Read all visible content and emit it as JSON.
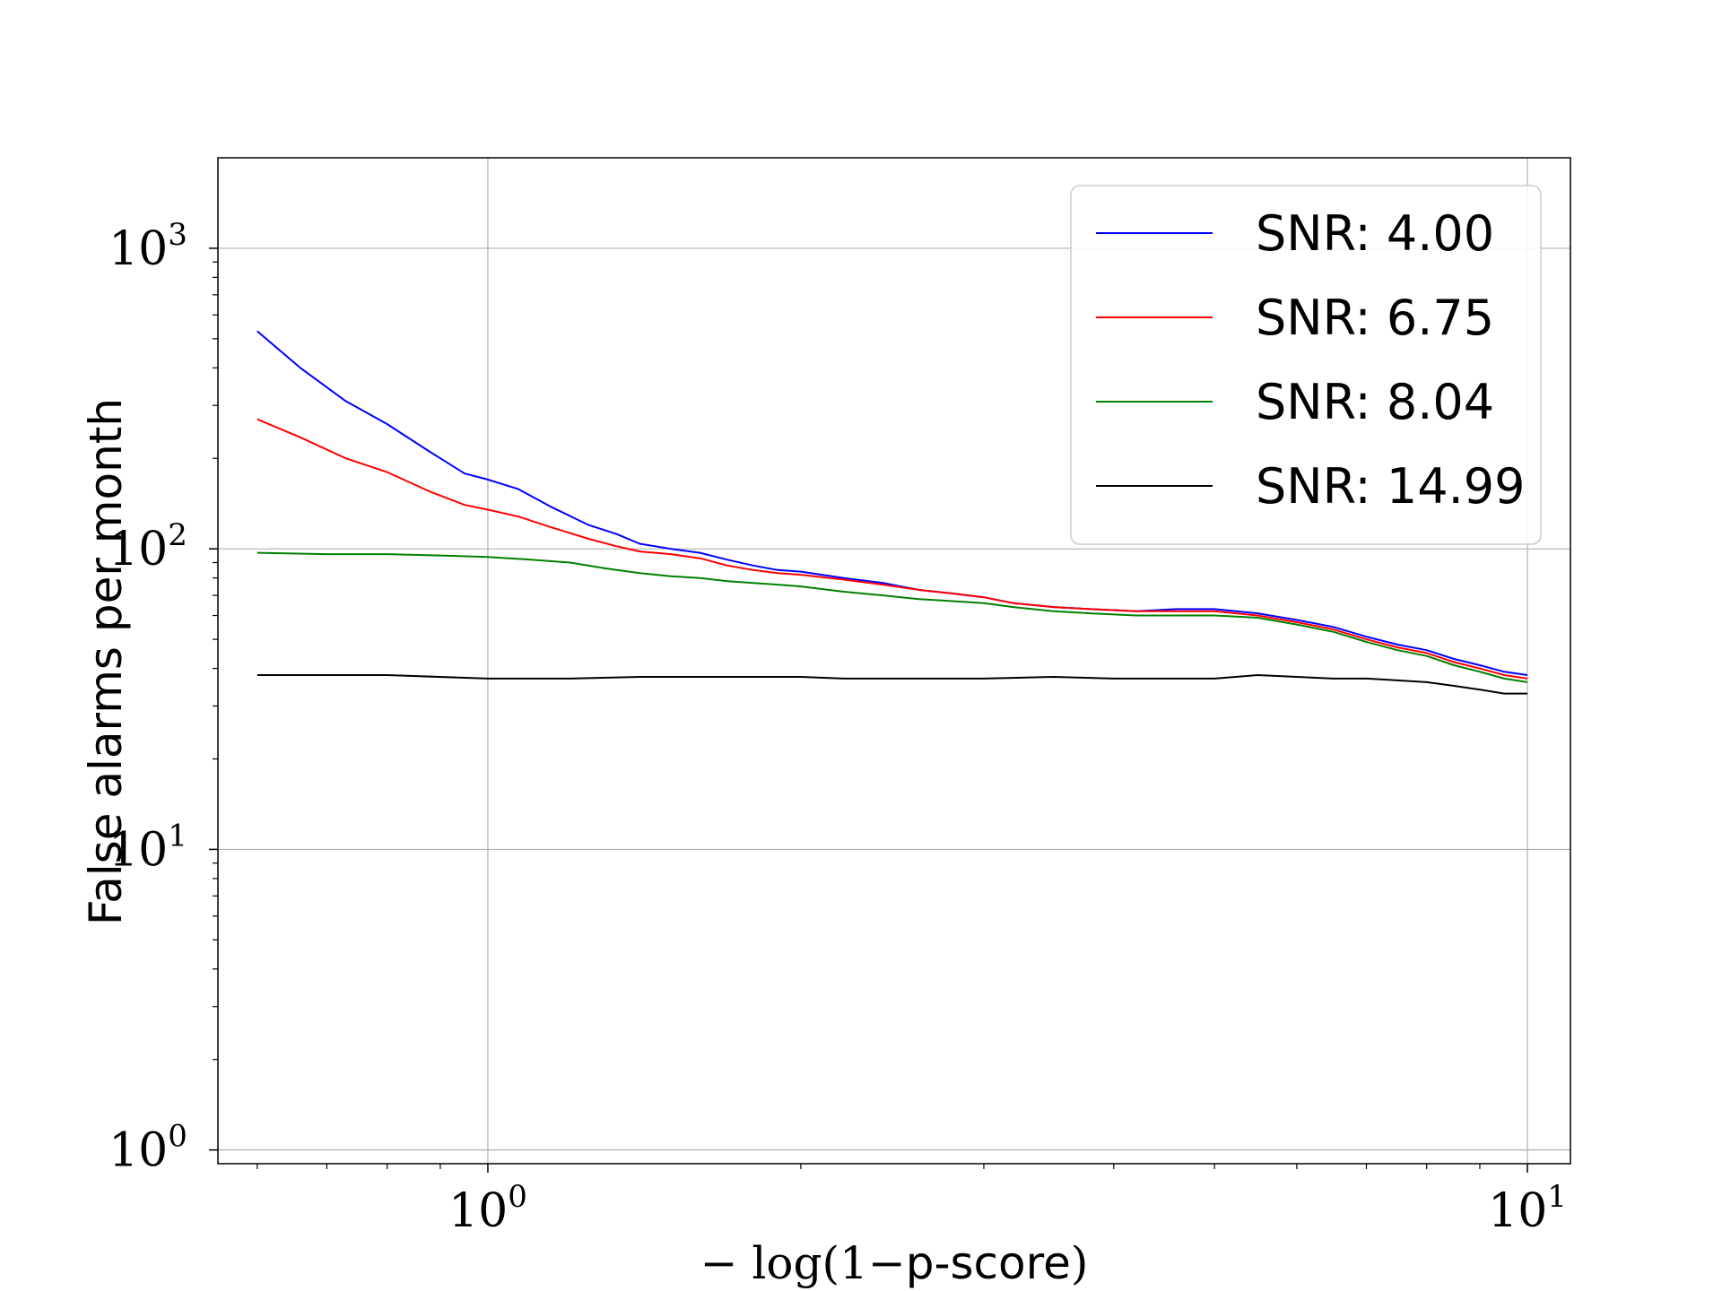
{
  "chart_data": {
    "type": "line",
    "title": "",
    "xlabel_math_prefix": "− log(1−",
    "xlabel_text": "p-score",
    "xlabel_math_suffix": ")",
    "ylabel": "False alarms per month",
    "x_scale": "log",
    "y_scale": "log",
    "xlim": [
      0.55,
      11.0
    ],
    "ylim": [
      0.9,
      2000
    ],
    "grid": true,
    "legend_position": "top-right",
    "x_ticks": [
      {
        "base": "10",
        "exp": "0",
        "value": 1
      },
      {
        "base": "10",
        "exp": "1",
        "value": 10
      }
    ],
    "y_ticks": [
      {
        "base": "10",
        "exp": "0",
        "value": 1
      },
      {
        "base": "10",
        "exp": "1",
        "value": 10
      },
      {
        "base": "10",
        "exp": "2",
        "value": 100
      },
      {
        "base": "10",
        "exp": "3",
        "value": 1000
      }
    ],
    "series": [
      {
        "name": "SNR: 4.00",
        "color": "#0000ff",
        "points": [
          [
            0.6,
            530
          ],
          [
            0.66,
            400
          ],
          [
            0.73,
            310
          ],
          [
            0.8,
            260
          ],
          [
            0.88,
            210
          ],
          [
            0.95,
            178
          ],
          [
            1.0,
            170
          ],
          [
            1.07,
            158
          ],
          [
            1.15,
            138
          ],
          [
            1.25,
            120
          ],
          [
            1.33,
            112
          ],
          [
            1.4,
            104
          ],
          [
            1.5,
            100
          ],
          [
            1.6,
            97
          ],
          [
            1.7,
            92
          ],
          [
            1.8,
            88
          ],
          [
            1.9,
            85
          ],
          [
            2.0,
            84
          ],
          [
            2.2,
            80
          ],
          [
            2.4,
            77
          ],
          [
            2.6,
            73
          ],
          [
            2.8,
            71
          ],
          [
            3.0,
            69
          ],
          [
            3.2,
            66
          ],
          [
            3.5,
            64
          ],
          [
            3.8,
            63
          ],
          [
            4.2,
            62
          ],
          [
            4.6,
            63
          ],
          [
            5.0,
            63
          ],
          [
            5.5,
            61
          ],
          [
            6.0,
            58
          ],
          [
            6.5,
            55
          ],
          [
            7.0,
            51
          ],
          [
            7.5,
            48
          ],
          [
            8.0,
            46
          ],
          [
            8.5,
            43
          ],
          [
            9.0,
            41
          ],
          [
            9.5,
            39
          ],
          [
            10.0,
            38
          ]
        ]
      },
      {
        "name": "SNR: 6.75",
        "color": "#ff0000",
        "points": [
          [
            0.6,
            270
          ],
          [
            0.66,
            235
          ],
          [
            0.73,
            200
          ],
          [
            0.8,
            180
          ],
          [
            0.88,
            155
          ],
          [
            0.95,
            140
          ],
          [
            1.0,
            135
          ],
          [
            1.07,
            128
          ],
          [
            1.15,
            118
          ],
          [
            1.25,
            108
          ],
          [
            1.33,
            102
          ],
          [
            1.4,
            98
          ],
          [
            1.5,
            96
          ],
          [
            1.6,
            93
          ],
          [
            1.7,
            88
          ],
          [
            1.8,
            85
          ],
          [
            1.9,
            83
          ],
          [
            2.0,
            82
          ],
          [
            2.2,
            79
          ],
          [
            2.4,
            76
          ],
          [
            2.6,
            73
          ],
          [
            2.8,
            71
          ],
          [
            3.0,
            69
          ],
          [
            3.2,
            66
          ],
          [
            3.5,
            64
          ],
          [
            3.8,
            63
          ],
          [
            4.2,
            62
          ],
          [
            4.6,
            62
          ],
          [
            5.0,
            62
          ],
          [
            5.5,
            60
          ],
          [
            6.0,
            57
          ],
          [
            6.5,
            54
          ],
          [
            7.0,
            50
          ],
          [
            7.5,
            47
          ],
          [
            8.0,
            45
          ],
          [
            8.5,
            42
          ],
          [
            9.0,
            40
          ],
          [
            9.5,
            38
          ],
          [
            10.0,
            37
          ]
        ]
      },
      {
        "name": "SNR: 8.04",
        "color": "#008000",
        "points": [
          [
            0.6,
            97
          ],
          [
            0.7,
            96
          ],
          [
            0.8,
            96
          ],
          [
            0.9,
            95
          ],
          [
            1.0,
            94
          ],
          [
            1.1,
            92
          ],
          [
            1.2,
            90
          ],
          [
            1.3,
            86
          ],
          [
            1.4,
            83
          ],
          [
            1.5,
            81
          ],
          [
            1.6,
            80
          ],
          [
            1.7,
            78
          ],
          [
            1.8,
            77
          ],
          [
            1.9,
            76
          ],
          [
            2.0,
            75
          ],
          [
            2.2,
            72
          ],
          [
            2.4,
            70
          ],
          [
            2.6,
            68
          ],
          [
            2.8,
            67
          ],
          [
            3.0,
            66
          ],
          [
            3.2,
            64
          ],
          [
            3.5,
            62
          ],
          [
            3.8,
            61
          ],
          [
            4.2,
            60
          ],
          [
            4.6,
            60
          ],
          [
            5.0,
            60
          ],
          [
            5.5,
            59
          ],
          [
            6.0,
            56
          ],
          [
            6.5,
            53
          ],
          [
            7.0,
            49
          ],
          [
            7.5,
            46
          ],
          [
            8.0,
            44
          ],
          [
            8.5,
            41
          ],
          [
            9.0,
            39
          ],
          [
            9.5,
            37
          ],
          [
            10.0,
            36
          ]
        ]
      },
      {
        "name": "SNR: 14.99",
        "color": "#000000",
        "points": [
          [
            0.6,
            38
          ],
          [
            0.8,
            38
          ],
          [
            1.0,
            37
          ],
          [
            1.2,
            37
          ],
          [
            1.4,
            37.5
          ],
          [
            1.6,
            37.5
          ],
          [
            2.0,
            37.5
          ],
          [
            2.2,
            37
          ],
          [
            3.0,
            37
          ],
          [
            3.5,
            37.5
          ],
          [
            4.0,
            37
          ],
          [
            5.0,
            37
          ],
          [
            5.5,
            38
          ],
          [
            6.0,
            37.5
          ],
          [
            6.5,
            37
          ],
          [
            7.0,
            37
          ],
          [
            7.5,
            36.5
          ],
          [
            8.0,
            36
          ],
          [
            8.5,
            35
          ],
          [
            9.0,
            34
          ],
          [
            9.5,
            33
          ],
          [
            10.0,
            33
          ]
        ]
      }
    ]
  }
}
